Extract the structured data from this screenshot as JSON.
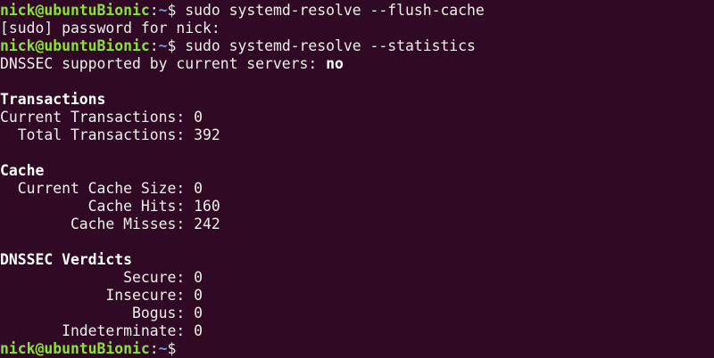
{
  "theme": {
    "background": "#300a24",
    "foreground": "#eeeeec",
    "prompt_user_color": "#8ae234",
    "prompt_path_color": "#729fcf"
  },
  "prompt": {
    "user_host": "nick@ubuntuBionic",
    "sep": ":",
    "path": "~",
    "symbol": "$ "
  },
  "lines": [
    {
      "prompt": true,
      "segments": [
        {
          "text": "sudo systemd-resolve --flush-cache"
        }
      ]
    },
    {
      "segments": [
        {
          "text": "[sudo] password for nick:"
        }
      ]
    },
    {
      "prompt": true,
      "segments": [
        {
          "text": "sudo systemd-resolve --statistics"
        }
      ]
    },
    {
      "segments": [
        {
          "text": "DNSSEC supported by current servers: "
        },
        {
          "text": "no",
          "bold": true
        }
      ]
    },
    {
      "segments": []
    },
    {
      "segments": [
        {
          "text": "Transactions",
          "bold": true
        }
      ]
    },
    {
      "segments": [
        {
          "text": "Current Transactions: 0"
        }
      ]
    },
    {
      "segments": [
        {
          "text": "  Total Transactions: 392"
        }
      ]
    },
    {
      "segments": []
    },
    {
      "segments": [
        {
          "text": "Cache",
          "bold": true
        }
      ]
    },
    {
      "segments": [
        {
          "text": "  Current Cache Size: 0"
        }
      ]
    },
    {
      "segments": [
        {
          "text": "          Cache Hits: 160"
        }
      ]
    },
    {
      "segments": [
        {
          "text": "        Cache Misses: 242"
        }
      ]
    },
    {
      "segments": []
    },
    {
      "segments": [
        {
          "text": "DNSSEC Verdicts",
          "bold": true
        }
      ]
    },
    {
      "segments": [
        {
          "text": "              Secure: 0"
        }
      ]
    },
    {
      "segments": [
        {
          "text": "            Insecure: 0"
        }
      ]
    },
    {
      "segments": [
        {
          "text": "               Bogus: 0"
        }
      ]
    },
    {
      "segments": [
        {
          "text": "       Indeterminate: 0"
        }
      ]
    },
    {
      "prompt": true,
      "segments": []
    }
  ]
}
